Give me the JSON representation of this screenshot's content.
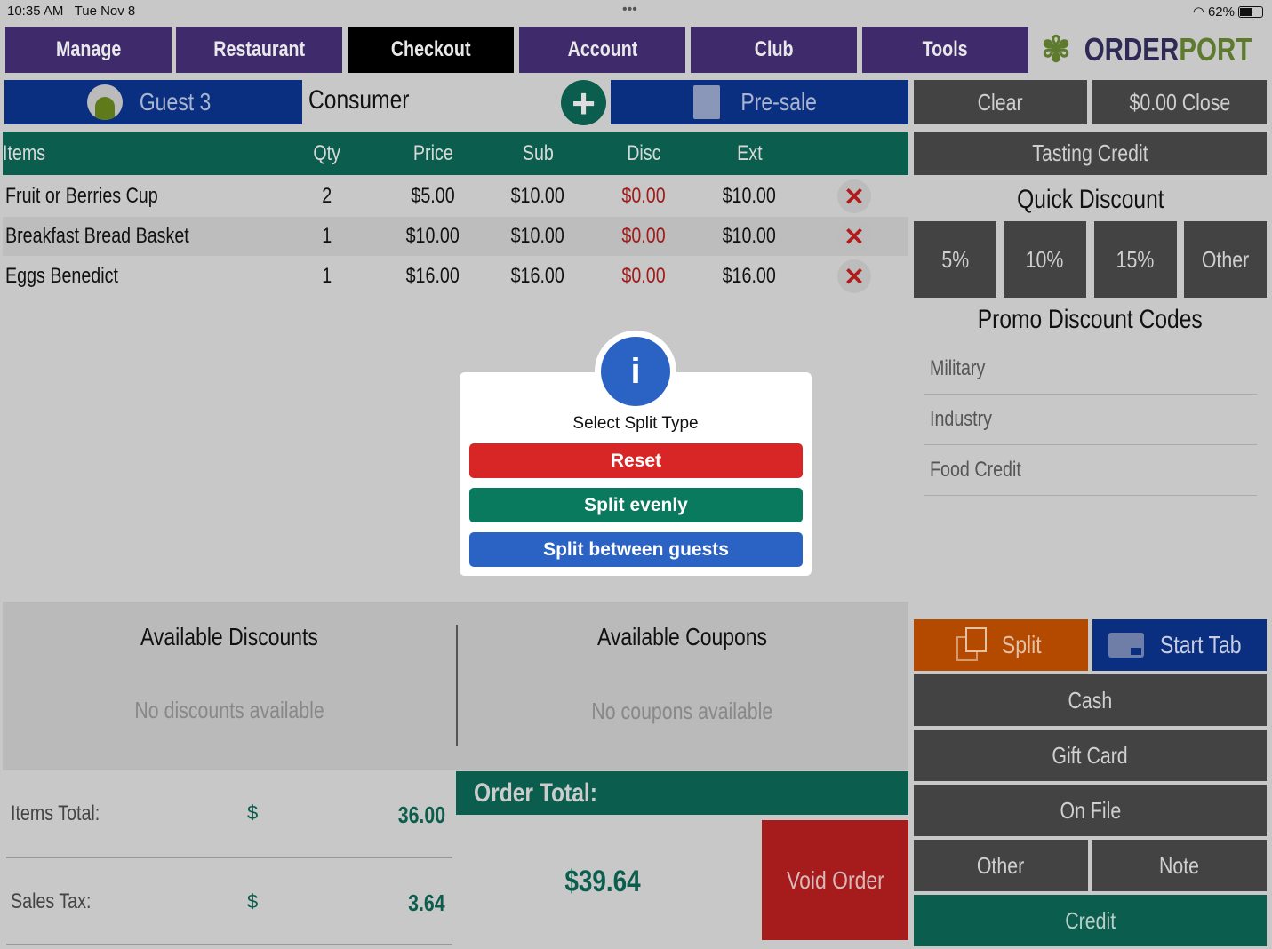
{
  "status_bar": {
    "time": "10:35 AM",
    "date": "Tue Nov 8",
    "battery": "62%",
    "dots": "•••"
  },
  "nav": {
    "tabs": [
      {
        "label": "Manage"
      },
      {
        "label": "Restaurant"
      },
      {
        "label": "Checkout",
        "active": true
      },
      {
        "label": "Account"
      },
      {
        "label": "Club"
      },
      {
        "label": "Tools"
      }
    ],
    "logo": {
      "text_a": "ORDER",
      "text_b": "PORT"
    }
  },
  "toolbar": {
    "guest": "Guest 3",
    "customer_type": "Consumer",
    "presale": "Pre-sale",
    "clear": "Clear",
    "close": "$0.00 Close"
  },
  "table": {
    "headers": [
      "Items",
      "Qty",
      "Price",
      "Sub",
      "Disc",
      "Ext"
    ],
    "rows": [
      {
        "item": "Fruit or Berries Cup",
        "qty": "2",
        "price": "$5.00",
        "sub": "$10.00",
        "disc": "$0.00",
        "ext": "$10.00"
      },
      {
        "item": "Breakfast Bread Basket",
        "qty": "1",
        "price": "$10.00",
        "sub": "$10.00",
        "disc": "$0.00",
        "ext": "$10.00"
      },
      {
        "item": "Eggs Benedict",
        "qty": "1",
        "price": "$16.00",
        "sub": "$16.00",
        "disc": "$0.00",
        "ext": "$16.00"
      }
    ]
  },
  "right": {
    "tasting_credit": "Tasting Credit",
    "quick_discount_title": "Quick Discount",
    "quick_discounts": [
      "5%",
      "10%",
      "15%",
      "Other"
    ],
    "promo_title": "Promo Discount Codes",
    "promo_codes": [
      "Military",
      "Industry",
      "Food Credit"
    ]
  },
  "modal": {
    "title": "Select Split Type",
    "icon": "info-icon",
    "reset": "Reset",
    "split_evenly": "Split evenly",
    "split_guests": "Split between guests"
  },
  "discounts": {
    "title": "Available Discounts",
    "empty": "No discounts available"
  },
  "coupons": {
    "title": "Available Coupons",
    "empty": "No coupons available"
  },
  "totals": {
    "items_label": "Items Total:",
    "items_currency": "$",
    "items_value": "36.00",
    "tax_label": "Sales Tax:",
    "tax_currency": "$",
    "tax_value": "3.64"
  },
  "order": {
    "label": "Order Total:",
    "total": "$39.64",
    "void": "Void Order"
  },
  "payment": {
    "split": "Split",
    "start_tab": "Start Tab",
    "cash": "Cash",
    "gift_card": "Gift Card",
    "on_file": "On File",
    "other": "Other",
    "note": "Note",
    "credit": "Credit"
  },
  "colors": {
    "nav": "#3f2a6b",
    "green": "#0b5d4d",
    "blue": "#0a2f80",
    "orange": "#b34a00",
    "red": "#a61b1b",
    "disc_red": "#a01a1a"
  }
}
